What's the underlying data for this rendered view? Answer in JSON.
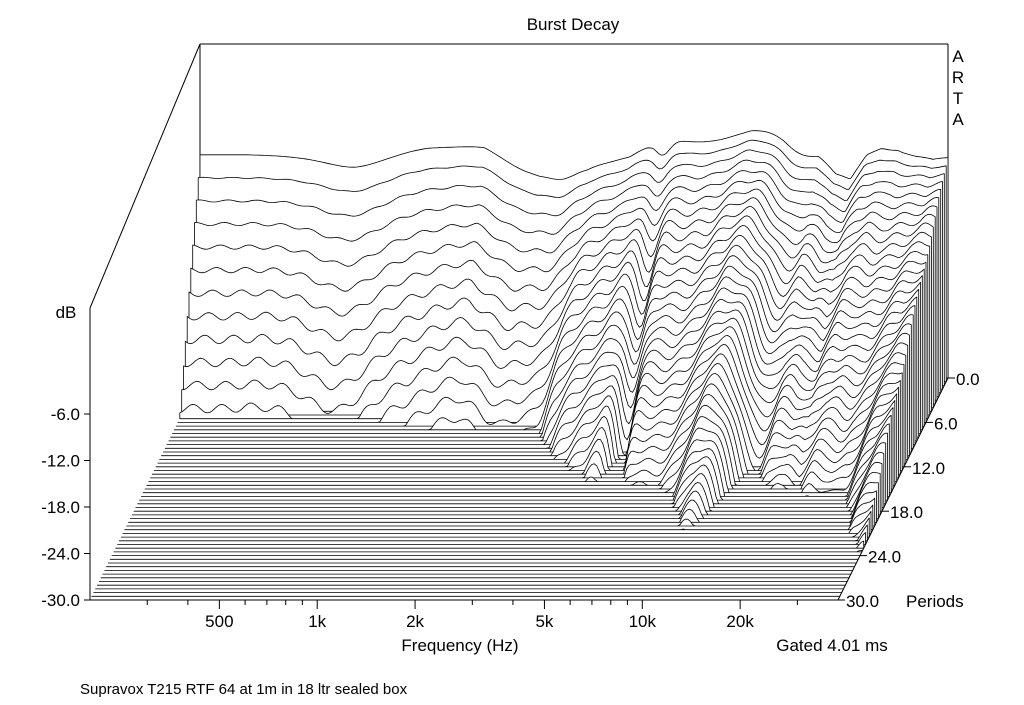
{
  "chart_data": {
    "type": "area",
    "subtype": "waterfall-3d",
    "title": "Burst Decay",
    "xlabel": "Frequency (Hz)",
    "ylabel": "dB",
    "zlabel": "Periods",
    "brand": "ARTA",
    "gate_note": "Gated 4.01 ms",
    "caption": "Supravox T215 RTF 64 at 1m in 18 ltr sealed box",
    "x_scale": "log",
    "xlim": [
      200,
      40000
    ],
    "ylim": [
      -30,
      0
    ],
    "zlim": [
      0,
      30
    ],
    "x_ticks": [
      {
        "label": "500",
        "value": 500
      },
      {
        "label": "1k",
        "value": 1000
      },
      {
        "label": "2k",
        "value": 2000
      },
      {
        "label": "5k",
        "value": 5000
      },
      {
        "label": "10k",
        "value": 10000
      },
      {
        "label": "20k",
        "value": 20000
      }
    ],
    "y_ticks": [
      {
        "label": "-6.0",
        "value": -6
      },
      {
        "label": "-12.0",
        "value": -12
      },
      {
        "label": "-18.0",
        "value": -18
      },
      {
        "label": "-24.0",
        "value": -24
      },
      {
        "label": "-30.0",
        "value": -30
      }
    ],
    "z_ticks": [
      {
        "label": "0.0",
        "value": 0
      },
      {
        "label": "6.0",
        "value": 6
      },
      {
        "label": "12.0",
        "value": 12
      },
      {
        "label": "18.0",
        "value": 18
      },
      {
        "label": "24.0",
        "value": 24
      },
      {
        "label": "30.0",
        "value": 30
      }
    ],
    "slice_periods": [
      0,
      0.5,
      1,
      1.5,
      2,
      2.5,
      3,
      3.5,
      4,
      4.5,
      5,
      5.5,
      6,
      6.5,
      7,
      7.5,
      8,
      8.5,
      9,
      9.5,
      10,
      10.5,
      11,
      11.5,
      12,
      12.5,
      13,
      13.5,
      14,
      14.5,
      15,
      15.5,
      16,
      16.5,
      17,
      17.5,
      18,
      18.5,
      19,
      19.5,
      20,
      20.5,
      21,
      21.5,
      22,
      22.5,
      23,
      23.5,
      24,
      24.5,
      25,
      25.5,
      26,
      26.5,
      27,
      27.5,
      28,
      28.5,
      29,
      29.5,
      30
    ],
    "initial_response": {
      "frequency_hz": [
        280,
        400,
        600,
        800,
        1000,
        1200,
        1500,
        1800,
        2200,
        2600,
        3100,
        3600,
        4200,
        5000,
        6000,
        7000,
        8000,
        9000,
        10000,
        11000,
        12500,
        14000,
        16000,
        18000,
        20000,
        22500,
        25000,
        28000,
        32000,
        36000
      ],
      "level_db": [
        -1.2,
        -1.4,
        -1.3,
        -0.8,
        -0.3,
        -0.2,
        0.0,
        -1.2,
        -2.5,
        -2.8,
        -2.9,
        -2.2,
        -1.4,
        0.6,
        1.3,
        1.5,
        1.8,
        2.2,
        2.5,
        2.3,
        2.0,
        1.3,
        0.2,
        -2.5,
        -3.2,
        0.1,
        1.2,
        1.0,
        -0.5,
        -1.5
      ]
    },
    "dips": [
      {
        "frequency_hz": 600,
        "depth_db": 12.5,
        "width_oct": 0.42
      },
      {
        "frequency_hz": 2000,
        "depth_db": 11.5,
        "width_oct": 0.33
      },
      {
        "frequency_hz": 2600,
        "depth_db": 10.0,
        "width_oct": 0.2
      },
      {
        "frequency_hz": 5300,
        "depth_db": 14.0,
        "width_oct": 0.1
      },
      {
        "frequency_hz": 7500,
        "depth_db": 9.0,
        "width_oct": 0.5
      },
      {
        "frequency_hz": 14000,
        "depth_db": 16.0,
        "width_oct": 0.22
      },
      {
        "frequency_hz": 20000,
        "depth_db": 9.0,
        "width_oct": 0.5
      },
      {
        "frequency_hz": 28000,
        "depth_db": 10.0,
        "width_oct": 0.28
      }
    ],
    "decay": [
      {
        "frequency_hz": 280,
        "db_per_period": 5.0
      },
      {
        "frequency_hz": 1000,
        "db_per_period": 4.5
      },
      {
        "frequency_hz": 2000,
        "db_per_period": 3.5
      },
      {
        "frequency_hz": 3000,
        "db_per_period": 2.6
      },
      {
        "frequency_hz": 5000,
        "db_per_period": 1.9
      },
      {
        "frequency_hz": 8000,
        "db_per_period": 1.6
      },
      {
        "frequency_hz": 10000,
        "db_per_period": 1.4
      },
      {
        "frequency_hz": 15000,
        "db_per_period": 1.3
      },
      {
        "frequency_hz": 20000,
        "db_per_period": 1.3
      },
      {
        "frequency_hz": 30000,
        "db_per_period": 1.2
      },
      {
        "frequency_hz": 36000,
        "db_per_period": 1.2
      }
    ]
  }
}
